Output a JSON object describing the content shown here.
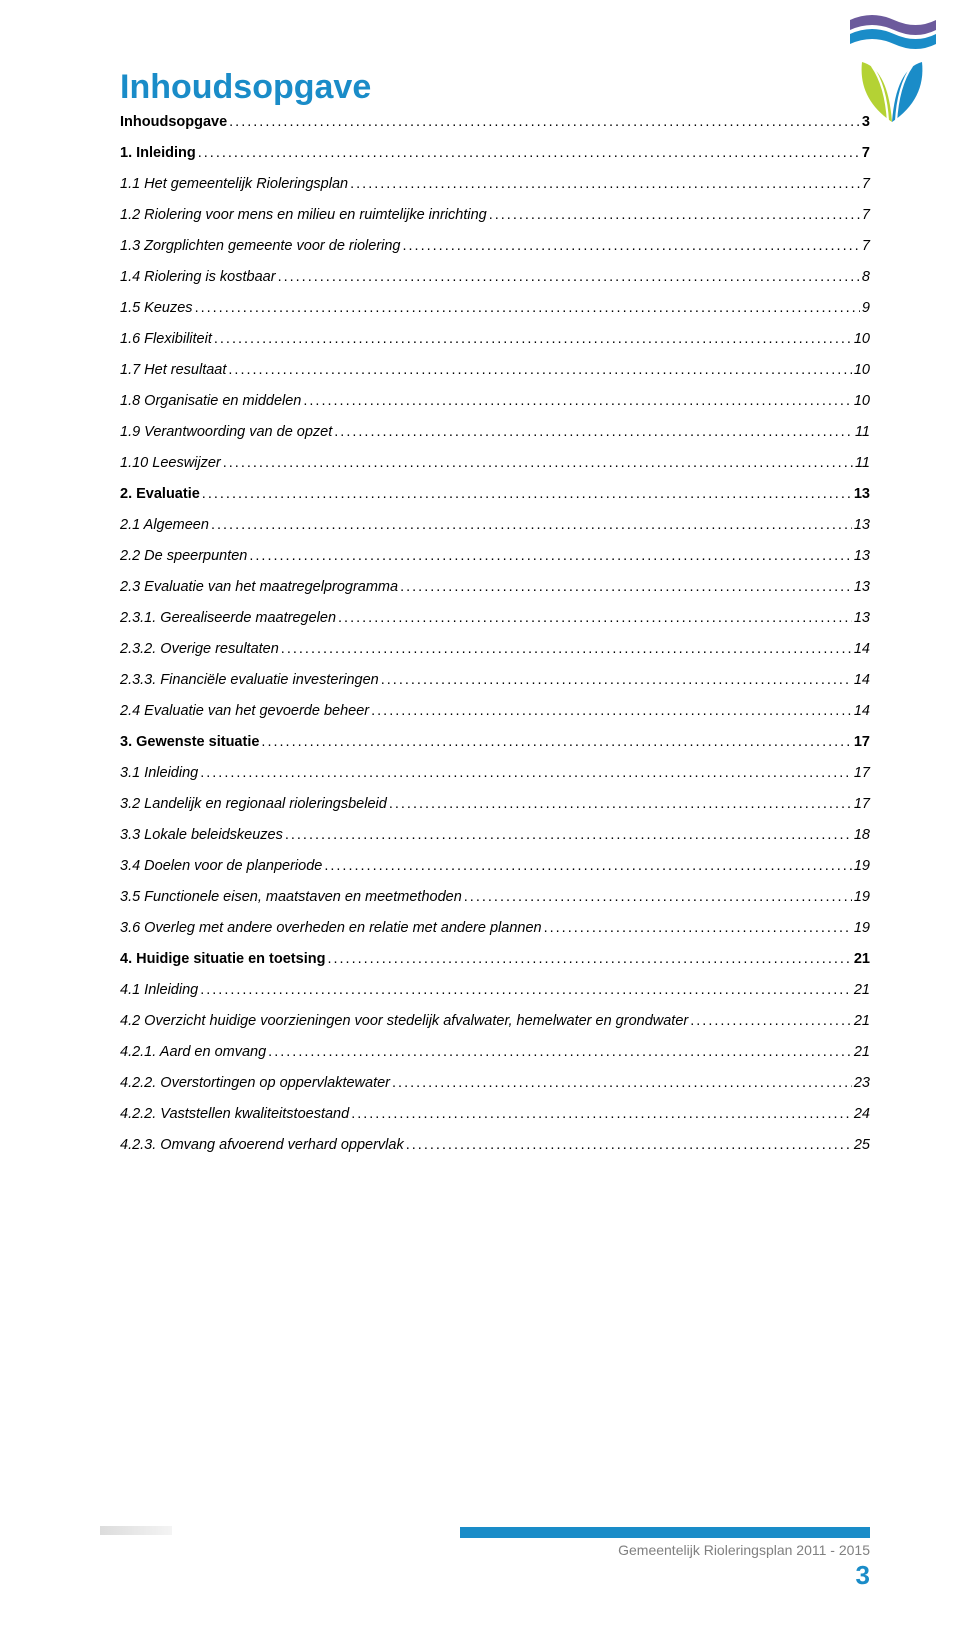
{
  "title": "Inhoudsopgave",
  "title_color": "#1a8cc8",
  "text_color": "#000000",
  "background_color": "#ffffff",
  "footer": {
    "bar_color": "#1a8cc8",
    "text": "Gemeentelijk Rioleringsplan 2011 - 2015",
    "text_color": "#808080",
    "page_number": "3",
    "page_number_color": "#1a8cc8"
  },
  "logo": {
    "wave_top_color": "#6c5a9c",
    "wave_bottom_color": "#1a8cc8",
    "leaf_left_color": "#b4d234",
    "leaf_right_color": "#1a8cc8"
  },
  "toc": [
    {
      "label": "Inhoudsopgave",
      "page": "3",
      "bold": true,
      "italic": false
    },
    {
      "label": "1. Inleiding",
      "page": "7",
      "bold": true,
      "italic": false
    },
    {
      "label": "1.1 Het gemeentelijk Rioleringsplan",
      "page": "7",
      "bold": false,
      "italic": true
    },
    {
      "label": "1.2 Riolering voor mens en milieu en ruimtelijke inrichting",
      "page": "7",
      "bold": false,
      "italic": true
    },
    {
      "label": "1.3 Zorgplichten gemeente voor de riolering",
      "page": "7",
      "bold": false,
      "italic": true
    },
    {
      "label": "1.4 Riolering is kostbaar",
      "page": "8",
      "bold": false,
      "italic": true
    },
    {
      "label": "1.5 Keuzes",
      "page": "9",
      "bold": false,
      "italic": true
    },
    {
      "label": "1.6 Flexibiliteit",
      "page": "10",
      "bold": false,
      "italic": true
    },
    {
      "label": "1.7 Het resultaat",
      "page": "10",
      "bold": false,
      "italic": true
    },
    {
      "label": "1.8 Organisatie en middelen",
      "page": "10",
      "bold": false,
      "italic": true
    },
    {
      "label": "1.9 Verantwoording van de opzet",
      "page": "11",
      "bold": false,
      "italic": true
    },
    {
      "label": "1.10 Leeswijzer",
      "page": "11",
      "bold": false,
      "italic": true
    },
    {
      "label": "2. Evaluatie",
      "page": "13",
      "bold": true,
      "italic": false
    },
    {
      "label": "2.1 Algemeen",
      "page": "13",
      "bold": false,
      "italic": true
    },
    {
      "label": "2.2 De speerpunten",
      "page": "13",
      "bold": false,
      "italic": true
    },
    {
      "label": "2.3 Evaluatie van het maatregelprogramma",
      "page": "13",
      "bold": false,
      "italic": true
    },
    {
      "label": "2.3.1. Gerealiseerde maatregelen",
      "page": "13",
      "bold": false,
      "italic": true
    },
    {
      "label": "2.3.2. Overige resultaten",
      "page": "14",
      "bold": false,
      "italic": true
    },
    {
      "label": "2.3.3. Financiële evaluatie investeringen",
      "page": "14",
      "bold": false,
      "italic": true
    },
    {
      "label": "2.4 Evaluatie van het gevoerde beheer",
      "page": "14",
      "bold": false,
      "italic": true
    },
    {
      "label": "3. Gewenste situatie",
      "page": "17",
      "bold": true,
      "italic": false
    },
    {
      "label": "3.1 Inleiding",
      "page": "17",
      "bold": false,
      "italic": true
    },
    {
      "label": "3.2 Landelijk en regionaal rioleringsbeleid",
      "page": "17",
      "bold": false,
      "italic": true
    },
    {
      "label": "3.3 Lokale beleidskeuzes",
      "page": "18",
      "bold": false,
      "italic": true
    },
    {
      "label": "3.4 Doelen voor de planperiode",
      "page": "19",
      "bold": false,
      "italic": true
    },
    {
      "label": "3.5 Functionele eisen, maatstaven en meetmethoden",
      "page": "19",
      "bold": false,
      "italic": true
    },
    {
      "label": "3.6 Overleg met andere overheden en relatie met andere plannen",
      "page": "19",
      "bold": false,
      "italic": true
    },
    {
      "label": "4. Huidige situatie en toetsing",
      "page": "21",
      "bold": true,
      "italic": false
    },
    {
      "label": "4.1 Inleiding",
      "page": "21",
      "bold": false,
      "italic": true
    },
    {
      "label": "4.2 Overzicht huidige voorzieningen voor stedelijk afvalwater, hemelwater en grondwater",
      "page": "21",
      "bold": false,
      "italic": true
    },
    {
      "label": "4.2.1. Aard en omvang",
      "page": "21",
      "bold": false,
      "italic": true
    },
    {
      "label": "4.2.2. Overstortingen op oppervlaktewater",
      "page": "23",
      "bold": false,
      "italic": true
    },
    {
      "label": "4.2.2. Vaststellen kwaliteitstoestand",
      "page": "24",
      "bold": false,
      "italic": true
    },
    {
      "label": "4.2.3. Omvang afvoerend verhard oppervlak",
      "page": "25",
      "bold": false,
      "italic": true
    }
  ]
}
